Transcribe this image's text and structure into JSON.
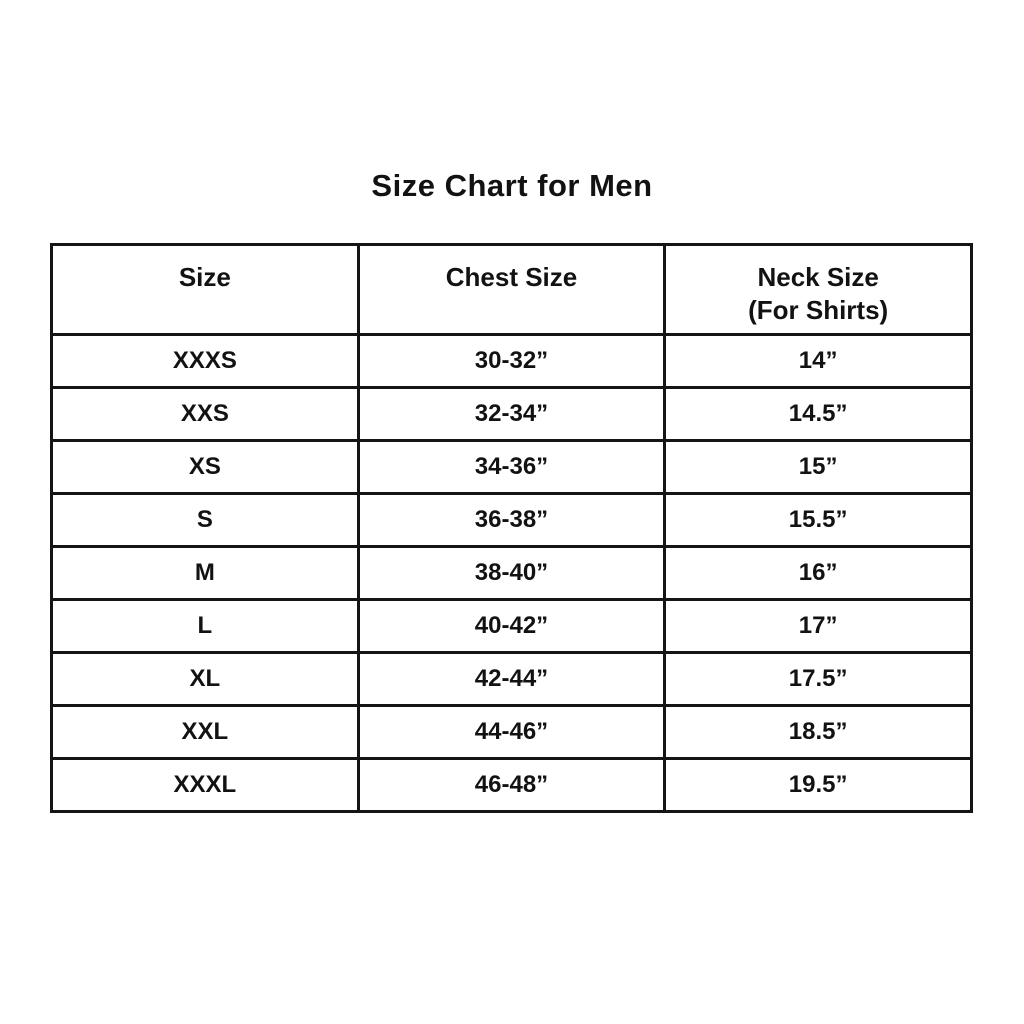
{
  "page": {
    "title": "Size Chart for Men"
  },
  "chart_data": {
    "type": "table",
    "title": "Size Chart for Men",
    "columns": [
      "Size",
      "Chest Size",
      "Neck Size (For Shirts)"
    ],
    "rows": [
      [
        "XXXS",
        "30-32”",
        "14”"
      ],
      [
        "XXS",
        "32-34”",
        "14.5”"
      ],
      [
        "XS",
        "34-36”",
        "15”"
      ],
      [
        "S",
        "36-38”",
        "15.5”"
      ],
      [
        "M",
        "38-40”",
        "16”"
      ],
      [
        "L",
        "40-42”",
        "17”"
      ],
      [
        "XL",
        "42-44”",
        "17.5”"
      ],
      [
        "XXL",
        "44-46”",
        "18.5”"
      ],
      [
        "XXXL",
        "46-48”",
        "19.5”"
      ]
    ],
    "layout": {
      "grid": true,
      "border_color": "#151515",
      "background": "#ffffff",
      "text_color": "#121212"
    }
  },
  "table": {
    "headers": [
      {
        "line1": "Size"
      },
      {
        "line1": "Chest Size"
      },
      {
        "line1": "Neck Size",
        "line2": "(For Shirts)"
      }
    ],
    "rows": [
      {
        "size": "XXXS",
        "chest": "30-32”",
        "neck": "14”"
      },
      {
        "size": "XXS",
        "chest": "32-34”",
        "neck": "14.5”"
      },
      {
        "size": "XS",
        "chest": "34-36”",
        "neck": "15”"
      },
      {
        "size": "S",
        "chest": "36-38”",
        "neck": "15.5”"
      },
      {
        "size": "M",
        "chest": "38-40”",
        "neck": "16”"
      },
      {
        "size": "L",
        "chest": "40-42”",
        "neck": "17”"
      },
      {
        "size": "XL",
        "chest": "42-44”",
        "neck": "17.5”"
      },
      {
        "size": "XXL",
        "chest": "44-46”",
        "neck": "18.5”"
      },
      {
        "size": "XXXL",
        "chest": "46-48”",
        "neck": "19.5”"
      }
    ]
  }
}
